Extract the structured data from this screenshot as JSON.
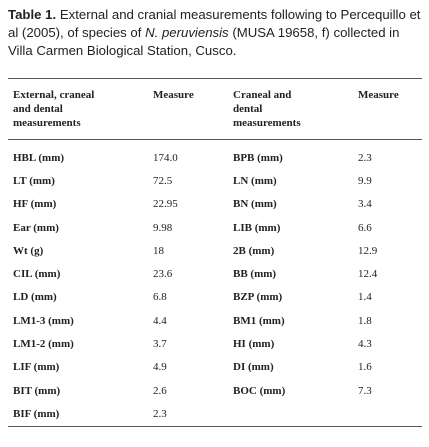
{
  "caption": {
    "label": "Table 1.",
    "text_before": "External and cranial measurements following to Percequillo et al (2005), of species of",
    "species": "N. peruviensis",
    "text_after": "(MUSA 19658, f)  collected in Villa Carmen Biological Station, Cusco."
  },
  "table": {
    "header": [
      "External, craneal and dental measurements",
      "Measure",
      "Craneal and dental measurements",
      "Measure"
    ],
    "rows": [
      [
        "HBL (mm)",
        "174.0",
        "BPB (mm)",
        "2.3"
      ],
      [
        "LT (mm)",
        "72.5",
        "LN (mm)",
        "9.9"
      ],
      [
        "HF (mm)",
        "22.95",
        "BN (mm)",
        "3.4"
      ],
      [
        "Ear (mm)",
        "9.98",
        "LIB (mm)",
        "6.6"
      ],
      [
        "Wt (g)",
        "18",
        "2B (mm)",
        "12.9"
      ],
      [
        "CIL (mm)",
        "23.6",
        "BB (mm)",
        "12.4"
      ],
      [
        "LD (mm)",
        "6.8",
        "BZP (mm)",
        "1.4"
      ],
      [
        "LM1-3 (mm)",
        "4.4",
        "BM1 (mm)",
        "1.8"
      ],
      [
        "LM1-2 (mm)",
        "3.7",
        "HI (mm)",
        "4.3"
      ],
      [
        "LIF (mm)",
        "4.9",
        "DI (mm)",
        "1.6"
      ],
      [
        "BIT (mm)",
        "2.6",
        "BOC (mm)",
        "7.3"
      ],
      [
        "BIF (mm)",
        "2.3"
      ]
    ]
  }
}
